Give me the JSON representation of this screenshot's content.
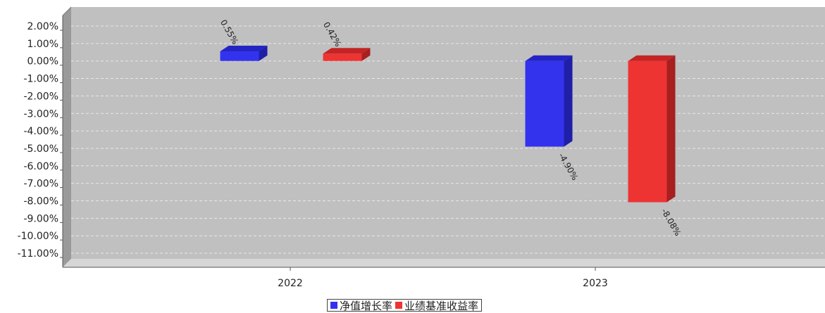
{
  "chart_data": {
    "type": "bar",
    "title": "",
    "xlabel": "",
    "ylabel": "",
    "categories": [
      "2022",
      "2023"
    ],
    "series": [
      {
        "name": "净值增长率",
        "values": [
          0.55,
          -4.9
        ],
        "labels": [
          "0.55%",
          "-4.90%"
        ],
        "color": "#3333ee",
        "side": "#1f1fa8",
        "top": "#2424c4"
      },
      {
        "name": "业绩基准收益率",
        "values": [
          0.42,
          -8.08
        ],
        "labels": [
          "0.42%",
          "-8.08%"
        ],
        "color": "#ee3333",
        "side": "#a81f1f",
        "top": "#c42424"
      }
    ],
    "ylim": [
      -11,
      2
    ],
    "yticks": [
      "2.00%",
      "1.00%",
      "0.00%",
      "-1.00%",
      "-2.00%",
      "-3.00%",
      "-4.00%",
      "-5.00%",
      "-6.00%",
      "-7.00%",
      "-8.00%",
      "-9.00%",
      "-10.00%",
      "-11.00%"
    ],
    "grid": true,
    "legend_position": "bottom-center",
    "plot_background": "#c0c0c0"
  }
}
